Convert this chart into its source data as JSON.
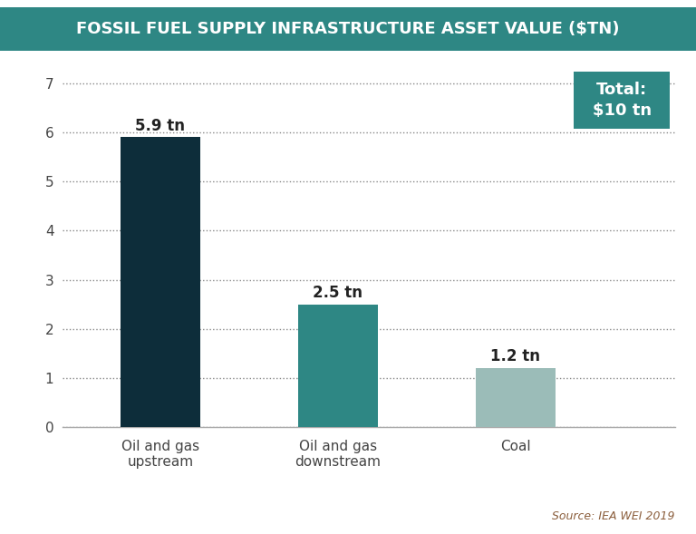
{
  "title": "FOSSIL FUEL SUPPLY INFRASTRUCTURE ASSET VALUE ($TN)",
  "title_bg_color": "#2e8784",
  "title_text_color": "#ffffff",
  "categories": [
    "Oil and gas\nupstream",
    "Oil and gas\ndownstream",
    "Coal"
  ],
  "values": [
    5.9,
    2.5,
    1.2
  ],
  "bar_colors": [
    "#0d2d3a",
    "#2e8784",
    "#9bbcb8"
  ],
  "bar_labels": [
    "5.9 tn",
    "2.5 tn",
    "1.2 tn"
  ],
  "ylim": [
    0,
    7.5
  ],
  "yticks": [
    0,
    1,
    2,
    3,
    4,
    5,
    6,
    7
  ],
  "total_label": "Total:\n$10 tn",
  "total_box_color": "#2e8784",
  "total_text_color": "#ffffff",
  "source_text": "Source: IEA WEI 2019",
  "source_color": "#8b5e3c",
  "grid_color": "#888888",
  "bg_color": "#ffffff",
  "label_fontsize": 11,
  "tick_fontsize": 11,
  "bar_label_fontsize": 12,
  "xlabel_color": "#444444"
}
